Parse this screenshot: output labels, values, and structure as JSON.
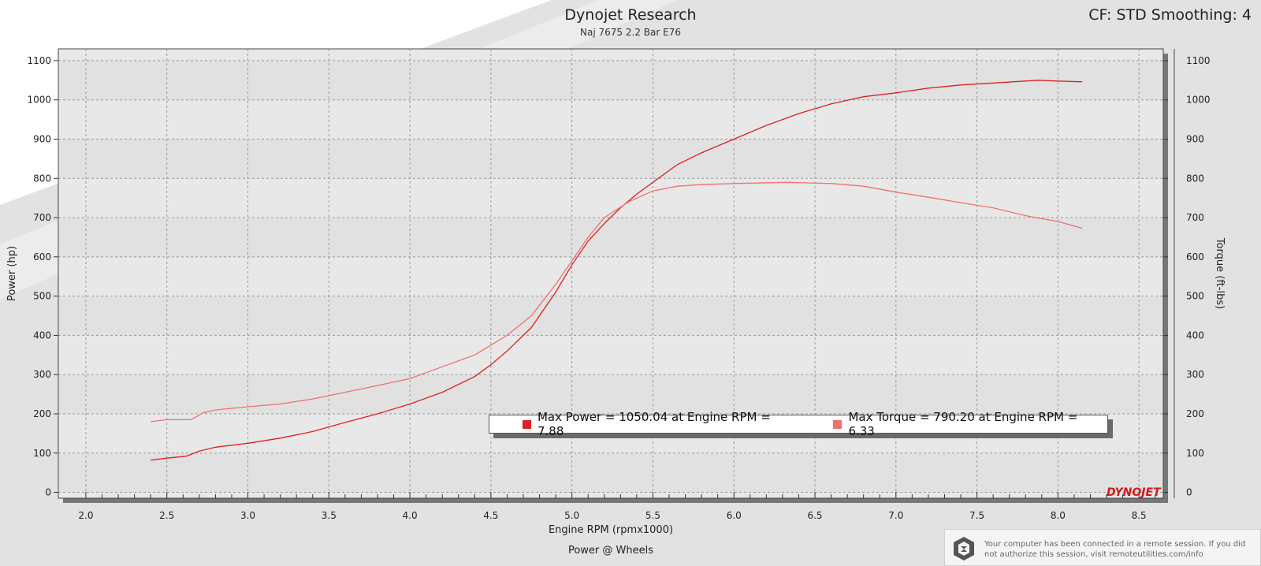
{
  "header": {
    "title": "Dynojet Research",
    "subtitle": "Naj 7675 2.2 Bar E76",
    "cf_label": "CF: STD Smoothing: 4"
  },
  "colors": {
    "power": "#e02020",
    "torque": "#f07070",
    "plot_bg": "#e8e8e8",
    "frame_shadow": "#777777"
  },
  "chart_data": {
    "type": "line",
    "title": "Dynojet Research",
    "subtitle": "Naj 7675 2.2 Bar E76",
    "xlabel": "Engine RPM (rpmx1000)",
    "ylabel_left": "Power (hp)",
    "ylabel_right": "Torque (ft-lbs)",
    "footer": "Power @ Wheels",
    "xlim": [
      1.83,
      8.65
    ],
    "ylim": [
      -15,
      1130
    ],
    "x_ticks": [
      "2.0",
      "2.5",
      "3.0",
      "3.5",
      "4.0",
      "4.5",
      "5.0",
      "5.5",
      "6.0",
      "6.5",
      "7.0",
      "7.5",
      "8.0",
      "8.5"
    ],
    "y_ticks": [
      "0",
      "100",
      "200",
      "300",
      "400",
      "500",
      "600",
      "700",
      "800",
      "900",
      "1000",
      "1100"
    ],
    "grid": true,
    "series": [
      {
        "key": "power",
        "x": [
          2.4,
          2.5,
          2.62,
          2.7,
          2.8,
          3.0,
          3.2,
          3.4,
          3.6,
          3.8,
          4.0,
          4.2,
          4.4,
          4.5,
          4.6,
          4.75,
          4.9,
          5.0,
          5.1,
          5.2,
          5.3,
          5.4,
          5.5,
          5.65,
          5.8,
          6.0,
          6.2,
          6.4,
          6.6,
          6.8,
          7.0,
          7.2,
          7.4,
          7.6,
          7.88,
          8.0,
          8.15
        ],
        "y": [
          82,
          87,
          92,
          105,
          115,
          125,
          138,
          155,
          178,
          200,
          225,
          255,
          295,
          325,
          360,
          420,
          510,
          580,
          640,
          685,
          725,
          760,
          790,
          835,
          865,
          900,
          935,
          965,
          990,
          1008,
          1018,
          1030,
          1038,
          1043,
          1050,
          1048,
          1046
        ]
      },
      {
        "key": "torque",
        "x": [
          2.4,
          2.5,
          2.65,
          2.72,
          2.8,
          3.0,
          3.2,
          3.4,
          3.6,
          3.8,
          4.0,
          4.2,
          4.4,
          4.6,
          4.75,
          4.9,
          5.0,
          5.1,
          5.2,
          5.35,
          5.5,
          5.65,
          5.8,
          6.0,
          6.33,
          6.6,
          6.8,
          7.0,
          7.2,
          7.4,
          7.6,
          7.8,
          8.0,
          8.15
        ],
        "y": [
          180,
          185,
          185,
          202,
          210,
          218,
          225,
          238,
          255,
          272,
          290,
          320,
          350,
          400,
          450,
          530,
          590,
          650,
          700,
          740,
          768,
          780,
          784,
          787,
          790,
          787,
          780,
          765,
          752,
          738,
          725,
          705,
          690,
          673
        ]
      }
    ],
    "legend": {
      "power": "Max Power = 1050.04 at Engine RPM = 7.88",
      "torque": "Max Torque = 790.20 at Engine RPM = 6.33"
    }
  },
  "logo": {
    "text": "DYNOJET"
  },
  "remote_notice": {
    "icon": "remote-session-icon",
    "text": "Your computer has been connected in a remote session. If you did not authorize this session, visit remoteutilities.com/info"
  }
}
